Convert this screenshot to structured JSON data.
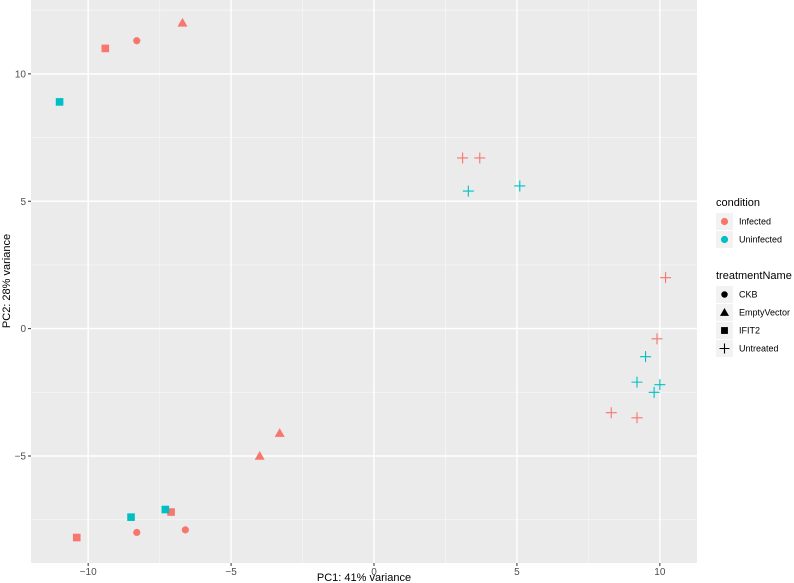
{
  "chart_data": {
    "type": "scatter",
    "title": "",
    "xlabel": "PC1: 41% variance",
    "ylabel": "PC2: 28% variance",
    "xlim": [
      -12.0,
      11.3
    ],
    "ylim": [
      -9.2,
      12.9
    ],
    "xticks": [
      -10,
      -5,
      0,
      5,
      10
    ],
    "xtick_labels": [
      "−10",
      "−5",
      "0",
      "5",
      "10"
    ],
    "yticks": [
      -5,
      0,
      5,
      10
    ],
    "ytick_labels": [
      "−5",
      "0",
      "5",
      "10"
    ],
    "grid": true,
    "legend_position": "right",
    "colors": {
      "Infected": "#F8766D",
      "Uninfected": "#00BFC4"
    },
    "legends": [
      {
        "title": "condition",
        "entries": [
          {
            "label": "Infected",
            "key": "Infected"
          },
          {
            "label": "Uninfected",
            "key": "Uninfected"
          }
        ]
      },
      {
        "title": "treatmentName",
        "entries": [
          {
            "label": "CKB",
            "shape": "circle"
          },
          {
            "label": "EmptyVector",
            "shape": "triangle"
          },
          {
            "label": "IFIT2",
            "shape": "square"
          },
          {
            "label": "Untreated",
            "shape": "plus"
          }
        ]
      }
    ],
    "points": [
      {
        "x": -8.3,
        "y": 11.3,
        "condition": "Infected",
        "treatment": "CKB"
      },
      {
        "x": -8.3,
        "y": -8.0,
        "condition": "Infected",
        "treatment": "CKB"
      },
      {
        "x": -6.6,
        "y": -7.9,
        "condition": "Infected",
        "treatment": "CKB"
      },
      {
        "x": -6.7,
        "y": 12.0,
        "condition": "Infected",
        "treatment": "EmptyVector"
      },
      {
        "x": -3.3,
        "y": -4.1,
        "condition": "Infected",
        "treatment": "EmptyVector"
      },
      {
        "x": -4.0,
        "y": -5.0,
        "condition": "Infected",
        "treatment": "EmptyVector"
      },
      {
        "x": -9.4,
        "y": 11.0,
        "condition": "Infected",
        "treatment": "IFIT2"
      },
      {
        "x": -10.4,
        "y": -8.2,
        "condition": "Infected",
        "treatment": "IFIT2"
      },
      {
        "x": -7.1,
        "y": -7.2,
        "condition": "Infected",
        "treatment": "IFIT2"
      },
      {
        "x": -11.0,
        "y": 8.9,
        "condition": "Uninfected",
        "treatment": "IFIT2"
      },
      {
        "x": -8.5,
        "y": -7.4,
        "condition": "Uninfected",
        "treatment": "IFIT2"
      },
      {
        "x": -7.3,
        "y": -7.1,
        "condition": "Uninfected",
        "treatment": "IFIT2"
      },
      {
        "x": 3.1,
        "y": 6.7,
        "condition": "Infected",
        "treatment": "Untreated"
      },
      {
        "x": 3.7,
        "y": 6.7,
        "condition": "Infected",
        "treatment": "Untreated"
      },
      {
        "x": 10.2,
        "y": 2.0,
        "condition": "Infected",
        "treatment": "Untreated"
      },
      {
        "x": 9.9,
        "y": -0.4,
        "condition": "Infected",
        "treatment": "Untreated"
      },
      {
        "x": 8.3,
        "y": -3.3,
        "condition": "Infected",
        "treatment": "Untreated"
      },
      {
        "x": 9.2,
        "y": -3.5,
        "condition": "Infected",
        "treatment": "Untreated"
      },
      {
        "x": 3.3,
        "y": 5.4,
        "condition": "Uninfected",
        "treatment": "Untreated"
      },
      {
        "x": 5.1,
        "y": 5.6,
        "condition": "Uninfected",
        "treatment": "Untreated"
      },
      {
        "x": 9.5,
        "y": -1.1,
        "condition": "Uninfected",
        "treatment": "Untreated"
      },
      {
        "x": 9.2,
        "y": -2.1,
        "condition": "Uninfected",
        "treatment": "Untreated"
      },
      {
        "x": 9.8,
        "y": -2.5,
        "condition": "Uninfected",
        "treatment": "Untreated"
      },
      {
        "x": 10.0,
        "y": -2.2,
        "condition": "Uninfected",
        "treatment": "Untreated"
      }
    ]
  }
}
